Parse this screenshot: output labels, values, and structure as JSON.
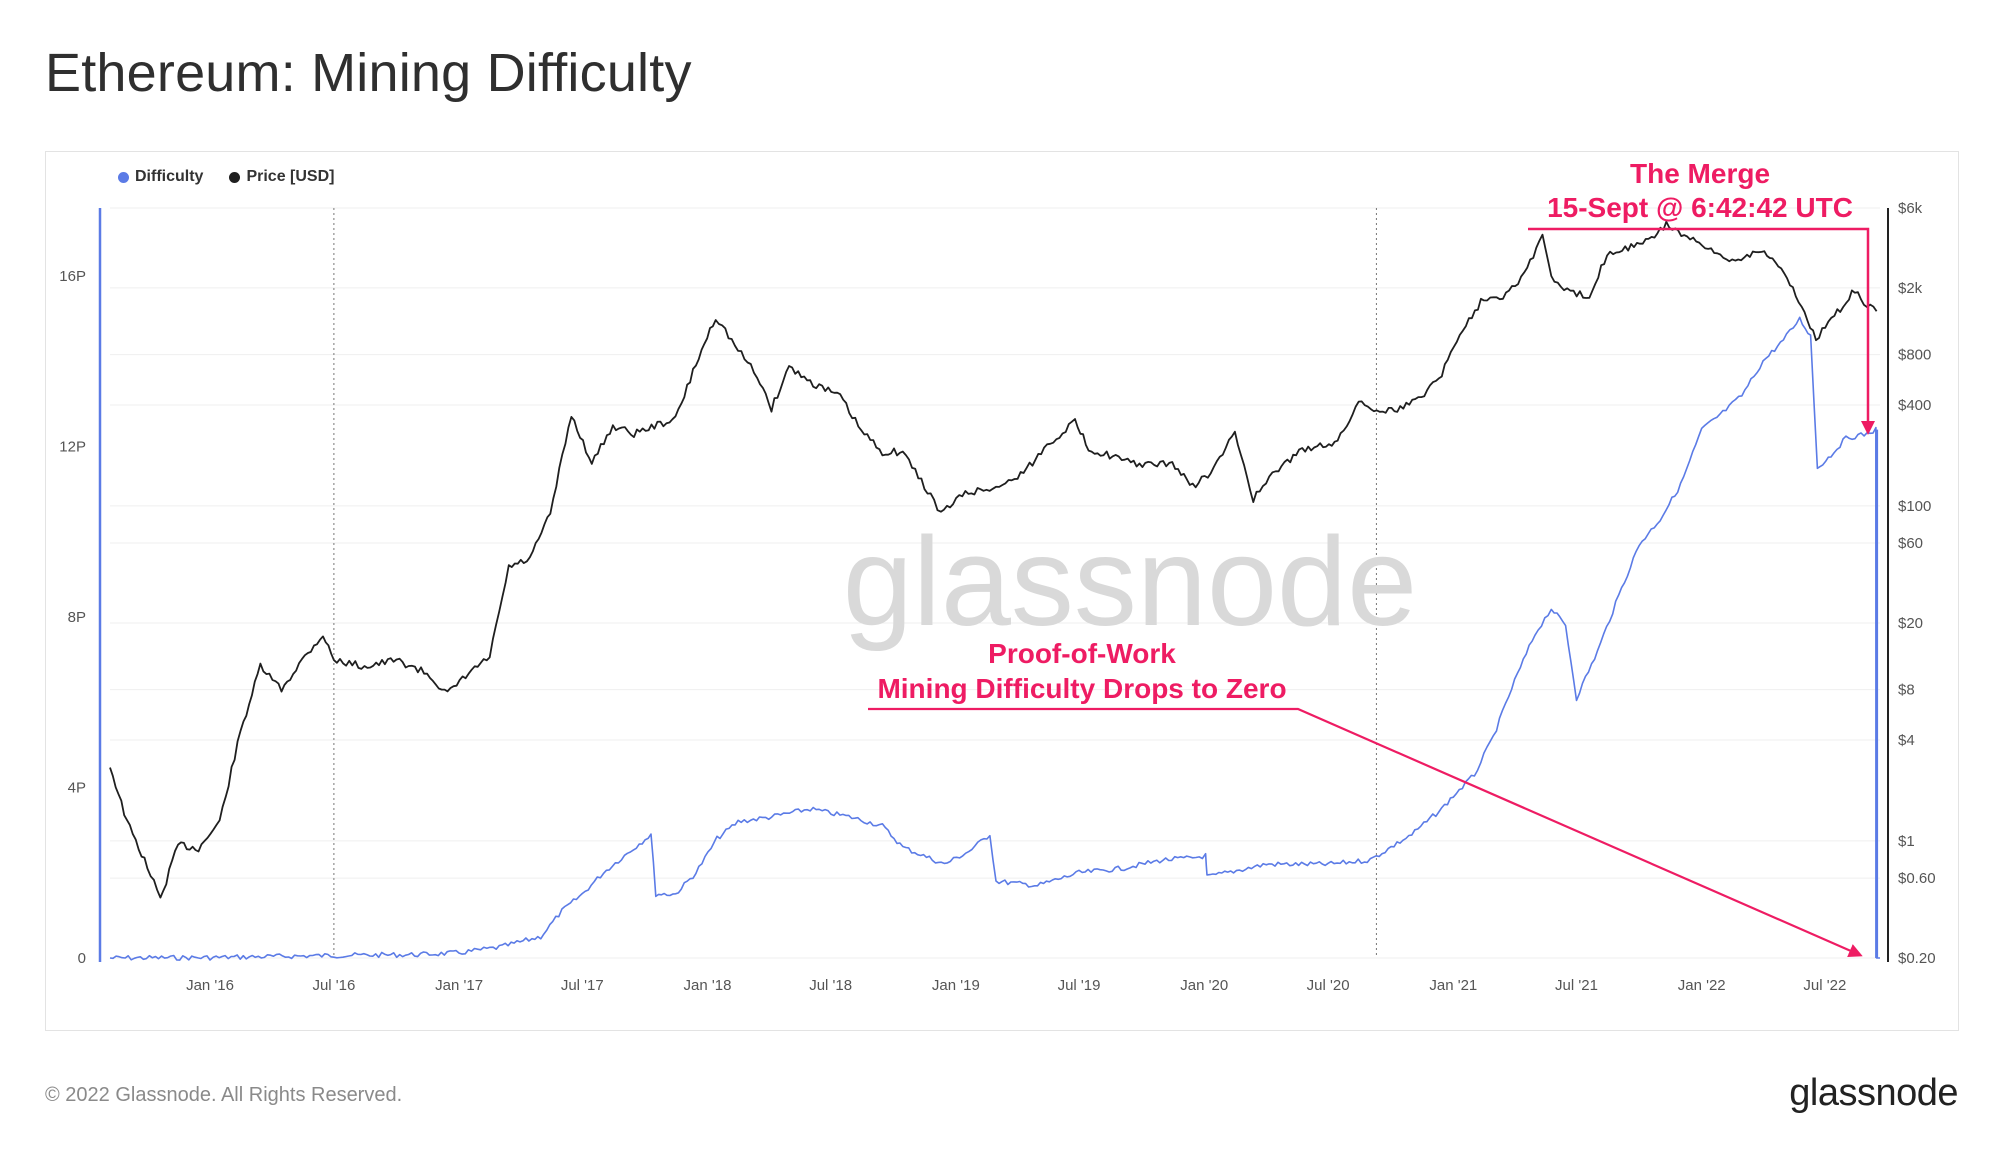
{
  "header": {
    "title": "Ethereum: Mining Difficulty"
  },
  "footer": {
    "copyright": "© 2022 Glassnode. All Rights Reserved.",
    "logo_text": "glassnode"
  },
  "watermark": "glassnode",
  "colors": {
    "difficulty": "#5b7be6",
    "price": "#1f1f1f",
    "annotation": "#ee1c63"
  },
  "chart_data": {
    "type": "line",
    "title": "Ethereum: Mining Difficulty",
    "legend": {
      "position": "top-left",
      "entries": [
        "Difficulty",
        "Price [USD]"
      ]
    },
    "x_range": [
      "2015-08-07",
      "2022-09-20"
    ],
    "x_ticks": [
      {
        "date": "2016-01-01",
        "label": "Jan '16"
      },
      {
        "date": "2016-07-01",
        "label": "Jul '16"
      },
      {
        "date": "2017-01-01",
        "label": "Jan '17"
      },
      {
        "date": "2017-07-01",
        "label": "Jul '17"
      },
      {
        "date": "2018-01-01",
        "label": "Jan '18"
      },
      {
        "date": "2018-07-01",
        "label": "Jul '18"
      },
      {
        "date": "2019-01-01",
        "label": "Jan '19"
      },
      {
        "date": "2019-07-01",
        "label": "Jul '19"
      },
      {
        "date": "2020-01-01",
        "label": "Jan '20"
      },
      {
        "date": "2020-07-01",
        "label": "Jul '20"
      },
      {
        "date": "2021-01-01",
        "label": "Jan '21"
      },
      {
        "date": "2021-07-01",
        "label": "Jul '21"
      },
      {
        "date": "2022-01-01",
        "label": "Jan '22"
      },
      {
        "date": "2022-07-01",
        "label": "Jul '22"
      }
    ],
    "y_left": {
      "unit": "P",
      "range": [
        0,
        17.6
      ],
      "ticks": [
        {
          "value": 0,
          "label": "0"
        },
        {
          "value": 4,
          "label": "4P"
        },
        {
          "value": 8,
          "label": "8P"
        },
        {
          "value": 12,
          "label": "12P"
        },
        {
          "value": 16,
          "label": "16P"
        }
      ]
    },
    "y_right": {
      "scale": "log",
      "range": [
        0.2,
        6000
      ],
      "ticks": [
        {
          "value": 0.2,
          "label": "$0.20"
        },
        {
          "value": 0.6,
          "label": "$0.60"
        },
        {
          "value": 1,
          "label": "$1"
        },
        {
          "value": 4,
          "label": "$4"
        },
        {
          "value": 8,
          "label": "$8"
        },
        {
          "value": 20,
          "label": "$20"
        },
        {
          "value": 60,
          "label": "$60"
        },
        {
          "value": 100,
          "label": "$100"
        },
        {
          "value": 400,
          "label": "$400"
        },
        {
          "value": 800,
          "label": "$800"
        },
        {
          "value": 2000,
          "label": "$2k"
        },
        {
          "value": 6000,
          "label": "$6k"
        }
      ]
    },
    "series": [
      {
        "name": "Difficulty",
        "axis": "left",
        "points": [
          [
            "2015-08-07",
            0.0
          ],
          [
            "2016-01-01",
            0.01
          ],
          [
            "2016-07-01",
            0.06
          ],
          [
            "2016-11-01",
            0.08
          ],
          [
            "2017-01-01",
            0.12
          ],
          [
            "2017-03-01",
            0.25
          ],
          [
            "2017-05-01",
            0.5
          ],
          [
            "2017-06-01",
            1.1
          ],
          [
            "2017-07-01",
            1.5
          ],
          [
            "2017-08-01",
            2.0
          ],
          [
            "2017-09-01",
            2.4
          ],
          [
            "2017-10-10",
            2.9
          ],
          [
            "2017-10-17",
            1.5
          ],
          [
            "2017-11-15",
            1.5
          ],
          [
            "2017-12-15",
            2.0
          ],
          [
            "2018-01-15",
            2.8
          ],
          [
            "2018-02-15",
            3.2
          ],
          [
            "2018-04-01",
            3.3
          ],
          [
            "2018-06-01",
            3.5
          ],
          [
            "2018-08-01",
            3.3
          ],
          [
            "2018-09-15",
            3.1
          ],
          [
            "2018-10-15",
            2.6
          ],
          [
            "2018-12-15",
            2.2
          ],
          [
            "2019-01-20",
            2.5
          ],
          [
            "2019-02-20",
            2.9
          ],
          [
            "2019-03-01",
            1.8
          ],
          [
            "2019-05-01",
            1.7
          ],
          [
            "2019-07-01",
            2.0
          ],
          [
            "2019-09-01",
            2.1
          ],
          [
            "2019-11-01",
            2.3
          ],
          [
            "2019-12-15",
            2.35
          ],
          [
            "2020-01-03",
            2.4
          ],
          [
            "2020-01-05",
            1.9
          ],
          [
            "2020-04-01",
            2.2
          ],
          [
            "2020-07-01",
            2.2
          ],
          [
            "2020-09-01",
            2.3
          ],
          [
            "2020-11-01",
            2.9
          ],
          [
            "2020-12-15",
            3.5
          ],
          [
            "2021-01-01",
            3.8
          ],
          [
            "2021-02-01",
            4.3
          ],
          [
            "2021-03-01",
            5.2
          ],
          [
            "2021-04-01",
            6.5
          ],
          [
            "2021-05-01",
            7.6
          ],
          [
            "2021-05-25",
            8.2
          ],
          [
            "2021-06-15",
            7.8
          ],
          [
            "2021-07-01",
            6.1
          ],
          [
            "2021-08-01",
            7.2
          ],
          [
            "2021-09-01",
            8.5
          ],
          [
            "2021-10-01",
            9.7
          ],
          [
            "2021-11-01",
            10.3
          ],
          [
            "2021-12-01",
            11.1
          ],
          [
            "2022-01-01",
            12.4
          ],
          [
            "2022-02-01",
            12.8
          ],
          [
            "2022-03-01",
            13.2
          ],
          [
            "2022-04-01",
            14.0
          ],
          [
            "2022-05-01",
            14.5
          ],
          [
            "2022-05-25",
            15.0
          ],
          [
            "2022-06-10",
            14.6
          ],
          [
            "2022-06-20",
            11.5
          ],
          [
            "2022-07-10",
            11.8
          ],
          [
            "2022-08-01",
            12.2
          ],
          [
            "2022-09-01",
            12.3
          ],
          [
            "2022-09-14",
            12.4
          ],
          [
            "2022-09-15",
            0.0
          ],
          [
            "2022-09-20",
            0.0
          ]
        ]
      },
      {
        "name": "Price [USD]",
        "axis": "right",
        "points": [
          [
            "2015-08-07",
            2.8
          ],
          [
            "2015-09-01",
            1.3
          ],
          [
            "2015-10-01",
            0.7
          ],
          [
            "2015-10-20",
            0.45
          ],
          [
            "2015-11-15",
            0.95
          ],
          [
            "2015-12-15",
            0.9
          ],
          [
            "2016-01-15",
            1.3
          ],
          [
            "2016-02-15",
            4.5
          ],
          [
            "2016-03-15",
            11
          ],
          [
            "2016-04-15",
            8
          ],
          [
            "2016-05-15",
            12
          ],
          [
            "2016-06-15",
            17
          ],
          [
            "2016-07-01",
            12
          ],
          [
            "2016-08-15",
            11
          ],
          [
            "2016-10-01",
            12
          ],
          [
            "2016-11-15",
            10
          ],
          [
            "2016-12-15",
            7.5
          ],
          [
            "2017-01-15",
            10
          ],
          [
            "2017-02-15",
            12.5
          ],
          [
            "2017-03-15",
            43
          ],
          [
            "2017-04-15",
            48
          ],
          [
            "2017-05-15",
            90
          ],
          [
            "2017-06-15",
            350
          ],
          [
            "2017-07-15",
            180
          ],
          [
            "2017-08-15",
            300
          ],
          [
            "2017-09-15",
            270
          ],
          [
            "2017-10-15",
            300
          ],
          [
            "2017-11-15",
            330
          ],
          [
            "2017-12-15",
            700
          ],
          [
            "2018-01-13",
            1350
          ],
          [
            "2018-02-15",
            850
          ],
          [
            "2018-03-15",
            600
          ],
          [
            "2018-04-05",
            380
          ],
          [
            "2018-05-01",
            680
          ],
          [
            "2018-06-01",
            550
          ],
          [
            "2018-07-15",
            450
          ],
          [
            "2018-08-15",
            280
          ],
          [
            "2018-09-15",
            210
          ],
          [
            "2018-10-15",
            210
          ],
          [
            "2018-11-25",
            115
          ],
          [
            "2018-12-10",
            90
          ],
          [
            "2019-01-15",
            120
          ],
          [
            "2019-02-15",
            125
          ],
          [
            "2019-03-15",
            135
          ],
          [
            "2019-04-15",
            165
          ],
          [
            "2019-05-15",
            230
          ],
          [
            "2019-06-25",
            320
          ],
          [
            "2019-07-15",
            220
          ],
          [
            "2019-08-15",
            200
          ],
          [
            "2019-09-15",
            180
          ],
          [
            "2019-10-15",
            175
          ],
          [
            "2019-11-15",
            180
          ],
          [
            "2019-12-15",
            130
          ],
          [
            "2020-01-15",
            165
          ],
          [
            "2020-02-15",
            275
          ],
          [
            "2020-03-13",
            110
          ],
          [
            "2020-04-15",
            160
          ],
          [
            "2020-05-15",
            205
          ],
          [
            "2020-06-15",
            230
          ],
          [
            "2020-07-15",
            240
          ],
          [
            "2020-08-15",
            420
          ],
          [
            "2020-09-15",
            370
          ],
          [
            "2020-10-15",
            380
          ],
          [
            "2020-11-15",
            450
          ],
          [
            "2020-12-15",
            620
          ],
          [
            "2021-01-15",
            1150
          ],
          [
            "2021-02-15",
            1750
          ],
          [
            "2021-03-15",
            1800
          ],
          [
            "2021-04-15",
            2400
          ],
          [
            "2021-05-12",
            4150
          ],
          [
            "2021-05-25",
            2300
          ],
          [
            "2021-06-22",
            1850
          ],
          [
            "2021-07-20",
            1800
          ],
          [
            "2021-08-15",
            3200
          ],
          [
            "2021-09-15",
            3500
          ],
          [
            "2021-10-15",
            3800
          ],
          [
            "2021-11-10",
            4800
          ],
          [
            "2021-12-15",
            3900
          ],
          [
            "2022-01-15",
            3300
          ],
          [
            "2022-02-15",
            2900
          ],
          [
            "2022-03-30",
            3400
          ],
          [
            "2022-04-15",
            3000
          ],
          [
            "2022-05-15",
            2000
          ],
          [
            "2022-06-18",
            1000
          ],
          [
            "2022-07-15",
            1350
          ],
          [
            "2022-08-14",
            1950
          ],
          [
            "2022-09-01",
            1550
          ],
          [
            "2022-09-15",
            1450
          ]
        ]
      }
    ],
    "annotations": [
      {
        "lines": [
          "The Merge",
          "15-Sept @ 6:42:42 UTC"
        ]
      },
      {
        "lines": [
          "Proof-of-Work",
          "Mining Difficulty Drops to Zero"
        ]
      }
    ]
  }
}
